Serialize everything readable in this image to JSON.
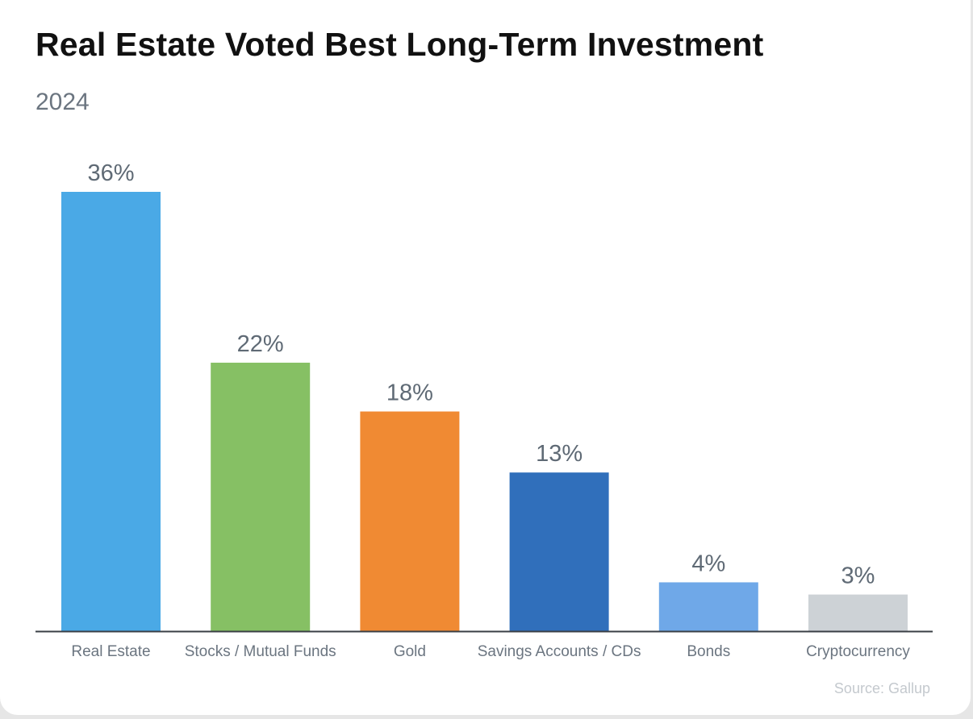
{
  "chart_data": {
    "type": "bar",
    "title": "Real Estate Voted Best Long-Term Investment",
    "subtitle": "2024",
    "categories": [
      "Real Estate",
      "Stocks / Mutual Funds",
      "Gold",
      "Savings Accounts / CDs",
      "Bonds",
      "Cryptocurrency"
    ],
    "values": [
      36,
      22,
      18,
      13,
      4,
      3
    ],
    "value_labels": [
      "36%",
      "22%",
      "18%",
      "13%",
      "4%",
      "3%"
    ],
    "colors": [
      "#4aa9e6",
      "#86c064",
      "#f08a33",
      "#306fbb",
      "#6fa8e8",
      "#cdd2d6"
    ],
    "xlabel": "",
    "ylabel": "",
    "ylim": [
      0,
      36
    ],
    "grid": false,
    "source": "Source: Gallup"
  }
}
